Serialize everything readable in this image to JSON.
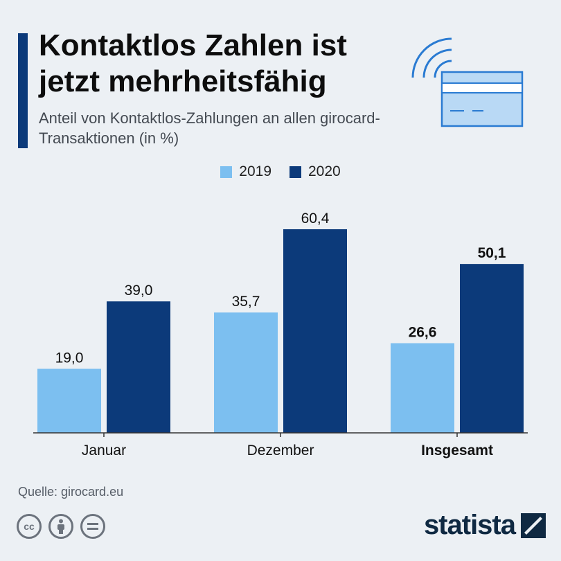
{
  "header": {
    "title": "Kontaktlos Zahlen ist jetzt mehrheitsfähig",
    "subtitle": "Anteil von Kontaktlos-Zahlungen an allen girocard-Transaktionen (in %)"
  },
  "legend": [
    {
      "label": "2019",
      "color": "#7cbff0"
    },
    {
      "label": "2020",
      "color": "#0c3a7a"
    }
  ],
  "chart_data": {
    "type": "bar",
    "categories": [
      "Januar",
      "Dezember",
      "Insgesamt"
    ],
    "series": [
      {
        "name": "2019",
        "values": [
          19.0,
          35.7,
          26.6
        ],
        "labels": [
          "19,0",
          "35,7",
          "26,6"
        ],
        "color": "#7cbff0"
      },
      {
        "name": "2020",
        "values": [
          39.0,
          60.4,
          50.1
        ],
        "labels": [
          "39,0",
          "60,4",
          "50,1"
        ],
        "color": "#0c3a7a"
      }
    ],
    "highlighted_category": "Insgesamt",
    "ylim": [
      0,
      70
    ],
    "grid": false,
    "legend_position": "top-center"
  },
  "footer": {
    "source": "Quelle: girocard.eu",
    "brand": "statista",
    "license_icons": [
      "cc-icon",
      "attribution-icon",
      "no-derivatives-icon"
    ]
  }
}
